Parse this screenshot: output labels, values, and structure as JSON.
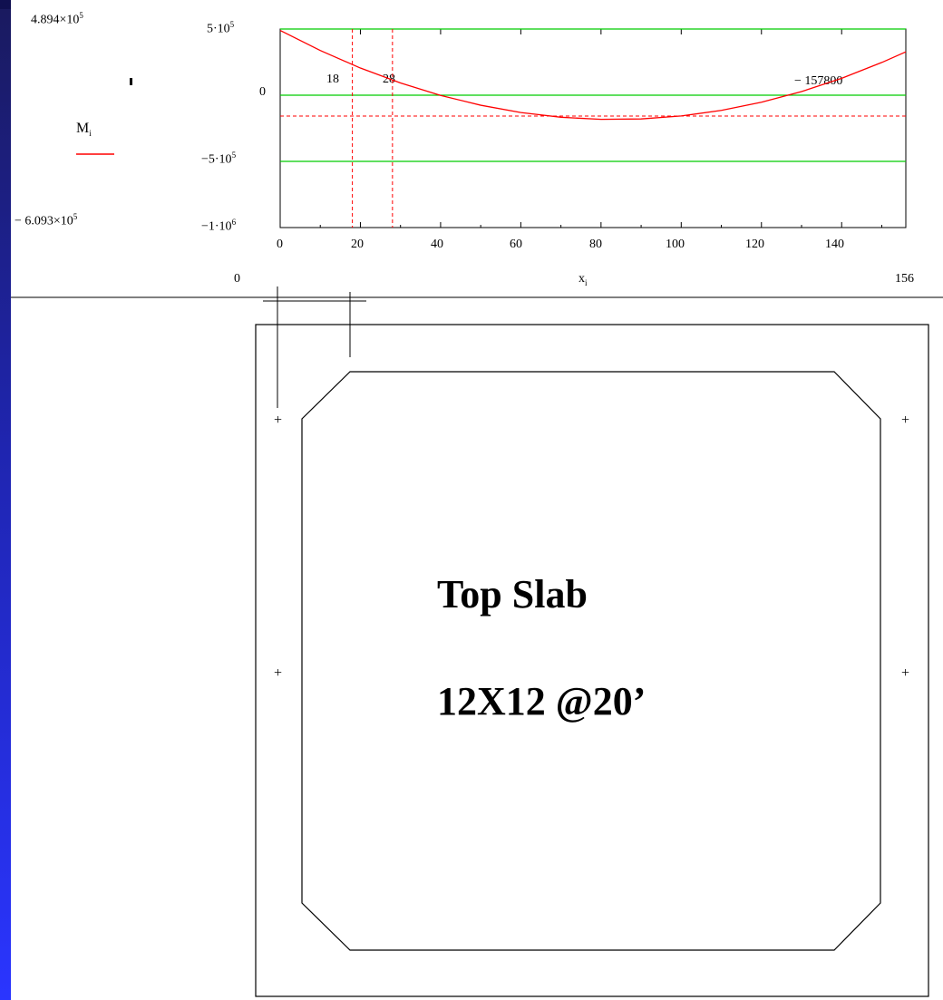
{
  "plot": {
    "left_max": {
      "base": "4.894×10",
      "exp": "5"
    },
    "left_min": {
      "base": "− 6.093×10",
      "exp": "5"
    },
    "legend": {
      "var": "M",
      "sub": "i",
      "color": "#ff0000"
    },
    "y_ticks": [
      {
        "base": "5·10",
        "exp": "5"
      },
      {
        "base": "0",
        "exp": ""
      },
      {
        "base": "−5·10",
        "exp": "5"
      },
      {
        "base": "−1·10",
        "exp": "6"
      }
    ],
    "x_ticks": [
      "0",
      "20",
      "40",
      "60",
      "80",
      "100",
      "120",
      "140"
    ],
    "x_range_min": "0",
    "x_range_max": "156",
    "x_label": {
      "var": "x",
      "sub": "i"
    },
    "marker_labels": {
      "m18": "18",
      "m28": "28",
      "zero_annot": "− 157800"
    }
  },
  "chart_data": {
    "type": "line",
    "x": [
      0,
      10,
      20,
      30,
      40,
      50,
      60,
      70,
      80,
      90,
      100,
      110,
      120,
      130,
      140,
      150,
      156
    ],
    "series": [
      {
        "name": "M",
        "color": "#ff0000",
        "values": [
          489400,
          337600,
          205200,
          92200,
          -1500,
          -75800,
          -130800,
          -166400,
          -182600,
          -179400,
          -156800,
          -114800,
          -53400,
          27400,
          127600,
          247200,
          327400
        ]
      }
    ],
    "hlines_green": [
      500000,
      0,
      -500000
    ],
    "hline_red_dashed": -157800,
    "vlines_red_dashed": [
      18,
      28
    ],
    "xlim": [
      0,
      156
    ],
    "ylim": [
      -1000000,
      500000
    ],
    "xlabel": "x_i",
    "ylabel": "M_i"
  },
  "slab": {
    "title_line1": "Top Slab",
    "title_line2": "12X12 @20’",
    "cross_marker": "+"
  },
  "colors": {
    "curve": "#ff0000",
    "guides": "#00cc00",
    "frame": "#000000",
    "background_edge": "#2a35ff"
  }
}
